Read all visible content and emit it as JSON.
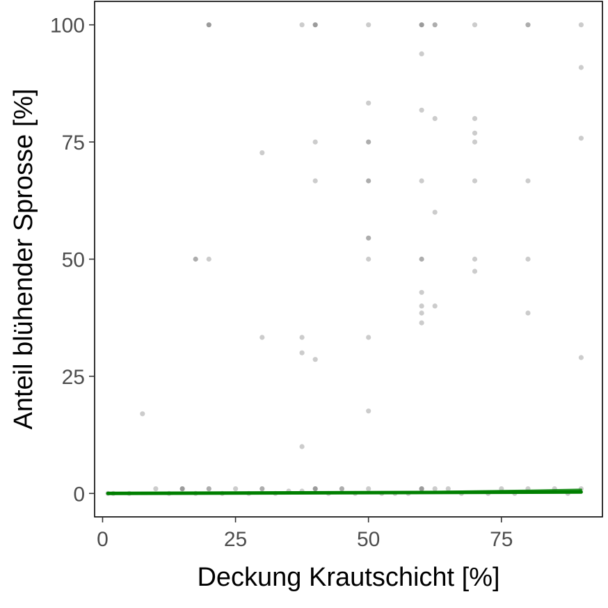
{
  "chart_data": {
    "type": "scatter",
    "title": "",
    "xlabel": "Deckung Krautschicht [%]",
    "ylabel": "Anteil blühender Sprosse [%]",
    "xlim": [
      -1.5,
      94
    ],
    "ylim": [
      -5,
      105
    ],
    "x_ticks": [
      0,
      25,
      50,
      75
    ],
    "y_ticks": [
      0,
      25,
      50,
      75,
      100
    ],
    "grid": false,
    "colors": {
      "points": "#7f7f7f",
      "trend": "#007f00",
      "axis": "#000000"
    },
    "series": [
      {
        "points": [
          [
            20,
            100,
            3
          ],
          [
            40,
            100,
            3
          ],
          [
            60,
            100,
            3
          ],
          [
            62.5,
            100,
            2
          ],
          [
            80,
            100,
            2
          ],
          [
            37.5,
            100,
            1
          ],
          [
            50,
            100,
            1
          ],
          [
            70,
            100,
            1
          ],
          [
            90,
            100,
            1
          ],
          [
            60,
            93.8,
            1
          ],
          [
            90,
            90.9,
            1
          ],
          [
            50,
            83.3,
            1
          ],
          [
            60,
            81.8,
            1
          ],
          [
            62.5,
            80,
            1
          ],
          [
            70,
            80,
            1
          ],
          [
            70,
            76.9,
            1
          ],
          [
            90,
            75.8,
            1
          ],
          [
            40,
            75,
            1
          ],
          [
            50,
            75,
            2
          ],
          [
            70,
            75,
            1
          ],
          [
            30,
            72.7,
            1
          ],
          [
            40,
            66.7,
            1
          ],
          [
            50,
            66.7,
            2
          ],
          [
            60,
            66.7,
            1
          ],
          [
            70,
            66.7,
            1
          ],
          [
            80,
            66.7,
            1
          ],
          [
            62.5,
            60,
            1
          ],
          [
            50,
            54.5,
            2
          ],
          [
            17.5,
            50,
            2
          ],
          [
            20,
            50,
            1
          ],
          [
            50,
            50,
            1
          ],
          [
            60,
            50,
            2
          ],
          [
            70,
            50,
            1
          ],
          [
            80,
            50,
            1
          ],
          [
            70,
            47.4,
            1
          ],
          [
            60,
            42.9,
            1
          ],
          [
            60,
            40,
            1
          ],
          [
            62.5,
            40,
            1
          ],
          [
            60,
            38.5,
            1
          ],
          [
            80,
            38.5,
            1
          ],
          [
            60,
            36.4,
            1
          ],
          [
            30,
            33.3,
            1
          ],
          [
            37.5,
            33.3,
            1
          ],
          [
            50,
            33.3,
            1
          ],
          [
            37.5,
            30,
            1
          ],
          [
            90,
            29,
            1
          ],
          [
            40,
            28.6,
            1
          ],
          [
            50,
            17.6,
            1
          ],
          [
            7.5,
            17,
            1
          ],
          [
            37.5,
            10,
            1
          ],
          [
            1,
            0,
            1
          ],
          [
            10,
            1,
            1
          ],
          [
            15,
            1,
            3
          ],
          [
            20,
            1,
            2
          ],
          [
            25,
            1,
            1
          ],
          [
            30,
            1,
            2
          ],
          [
            35,
            0.5,
            1
          ],
          [
            37.5,
            0.5,
            1
          ],
          [
            40,
            1,
            3
          ],
          [
            45,
            1,
            2
          ],
          [
            50,
            1,
            1
          ],
          [
            55,
            0,
            1
          ],
          [
            60,
            1,
            3
          ],
          [
            62.5,
            1,
            1
          ],
          [
            65,
            1,
            1
          ],
          [
            75,
            1,
            1
          ],
          [
            80,
            1,
            1
          ],
          [
            85,
            1,
            1
          ],
          [
            90,
            1,
            1
          ],
          [
            2,
            0,
            1
          ],
          [
            5,
            0,
            1
          ],
          [
            12.5,
            0,
            1
          ],
          [
            17.5,
            0,
            1
          ],
          [
            22.5,
            0,
            1
          ],
          [
            27.5,
            0,
            1
          ],
          [
            32.5,
            0,
            1
          ],
          [
            42.5,
            0,
            1
          ],
          [
            47.5,
            0,
            1
          ],
          [
            52.5,
            0,
            1
          ],
          [
            57.5,
            0,
            1
          ],
          [
            67.5,
            0,
            1
          ],
          [
            72.5,
            0,
            1
          ],
          [
            77.5,
            0,
            1
          ],
          [
            87.5,
            0,
            1
          ]
        ]
      }
    ],
    "trend_lines": [
      {
        "x": [
          1,
          90
        ],
        "y": [
          0.0,
          0.3
        ]
      },
      {
        "x": [
          1,
          20,
          40,
          60,
          80,
          90
        ],
        "y": [
          0.0,
          0.05,
          0.15,
          0.3,
          0.6,
          0.8
        ]
      }
    ]
  }
}
